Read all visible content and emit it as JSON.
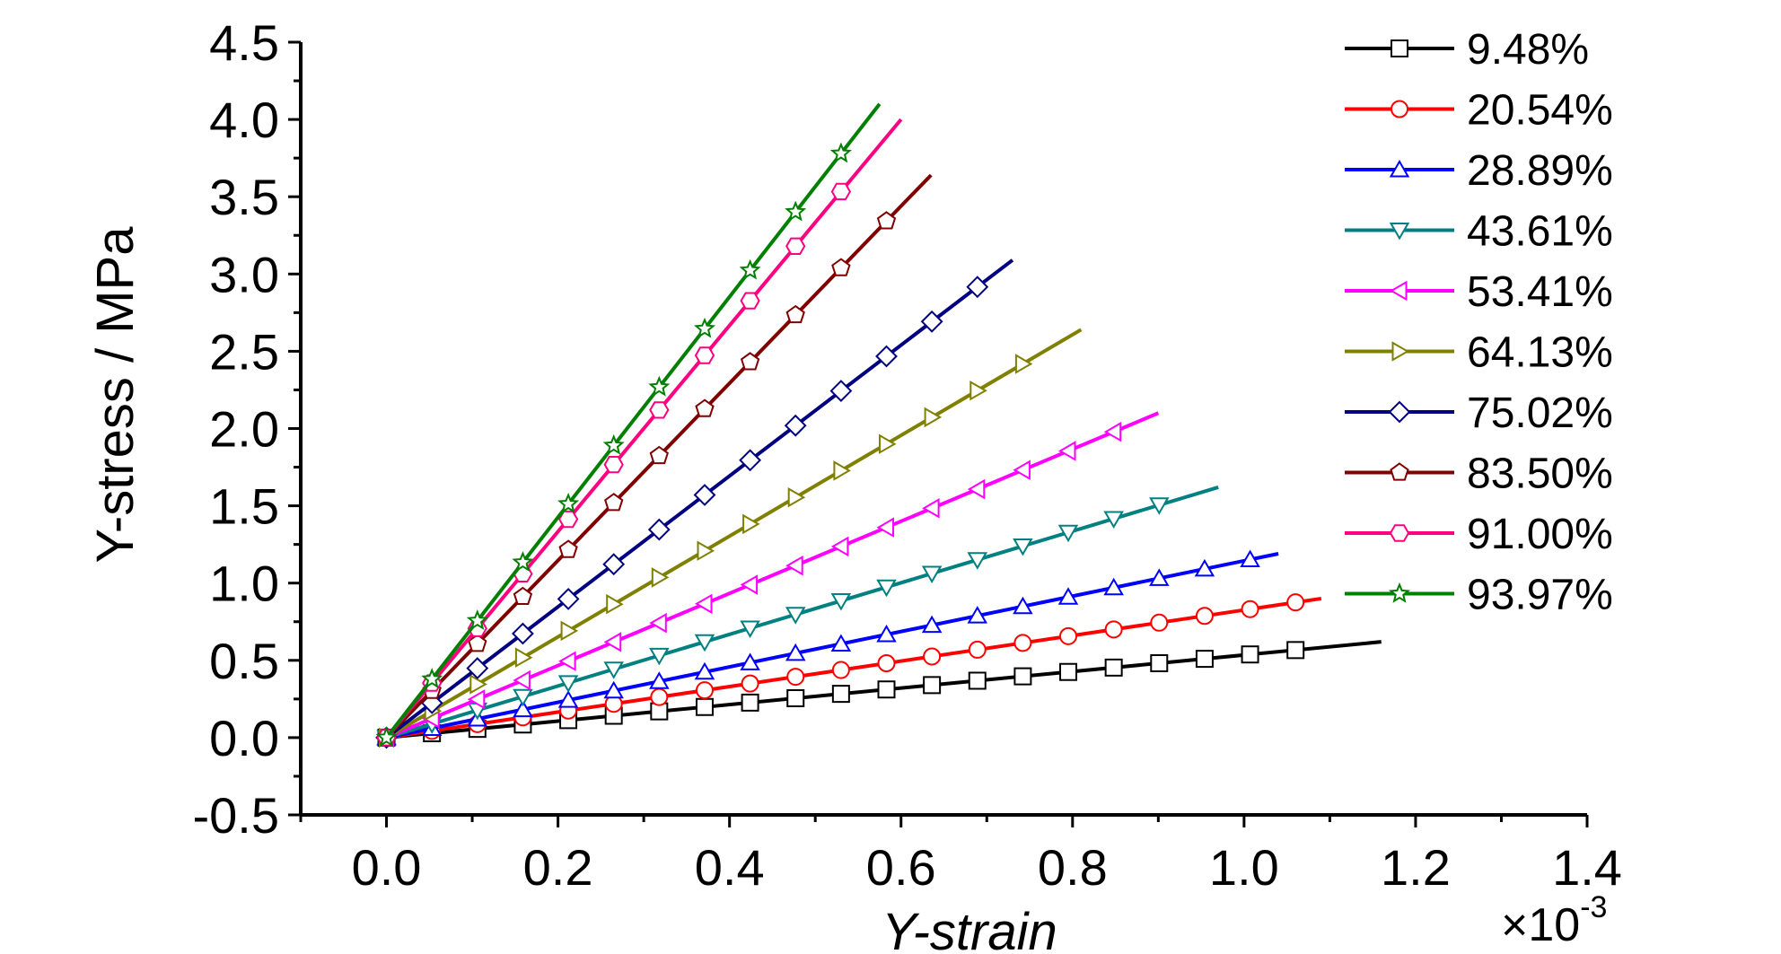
{
  "chart_data": {
    "type": "line",
    "xlabel": "Y-strain",
    "ylabel": "Y-stress / MPa",
    "x_multiplier": "×10",
    "x_multiplier_exp": "-3",
    "xlim": [
      -0.1,
      1.4
    ],
    "ylim": [
      -0.5,
      4.5
    ],
    "xticks": [
      0.0,
      0.2,
      0.4,
      0.6,
      0.8,
      1.0,
      1.2,
      1.4
    ],
    "xtick_labels": [
      "0.0",
      "0.2",
      "0.4",
      "0.6",
      "0.8",
      "1.0",
      "1.2",
      "1.4"
    ],
    "yticks": [
      -0.5,
      0.0,
      0.5,
      1.0,
      1.5,
      2.0,
      2.5,
      3.0,
      3.5,
      4.0,
      4.5
    ],
    "ytick_labels": [
      "-0.5",
      "0.0",
      "0.5",
      "1.0",
      "1.5",
      "2.0",
      "2.5",
      "3.0",
      "3.5",
      "4.0",
      "4.5"
    ],
    "grid": false,
    "legend_position": "top-right",
    "series": [
      {
        "name": "9.48%",
        "color": "#000000",
        "marker": "square",
        "xmax": 1.16,
        "ymax": 0.62
      },
      {
        "name": "20.54%",
        "color": "#ff0000",
        "marker": "circle",
        "xmax": 1.09,
        "ymax": 0.9
      },
      {
        "name": "28.89%",
        "color": "#0000ff",
        "marker": "triangle-up",
        "xmax": 1.04,
        "ymax": 1.19
      },
      {
        "name": "43.61%",
        "color": "#008080",
        "marker": "triangle-down",
        "xmax": 0.97,
        "ymax": 1.62
      },
      {
        "name": "53.41%",
        "color": "#ff00ff",
        "marker": "triangle-left",
        "xmax": 0.9,
        "ymax": 2.1
      },
      {
        "name": "64.13%",
        "color": "#808000",
        "marker": "triangle-right",
        "xmax": 0.81,
        "ymax": 2.64
      },
      {
        "name": "75.02%",
        "color": "#000080",
        "marker": "diamond",
        "xmax": 0.73,
        "ymax": 3.09
      },
      {
        "name": "83.50%",
        "color": "#800000",
        "marker": "pentagon",
        "xmax": 0.635,
        "ymax": 3.64
      },
      {
        "name": "91.00%",
        "color": "#ff0080",
        "marker": "hexagon",
        "xmax": 0.6,
        "ymax": 4.0
      },
      {
        "name": "93.97%",
        "color": "#008000",
        "marker": "star",
        "xmax": 0.575,
        "ymax": 4.1
      }
    ]
  }
}
